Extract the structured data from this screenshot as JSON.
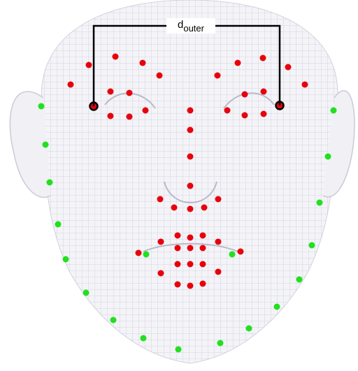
{
  "label": {
    "main": "d",
    "subscript": "outer"
  }
}
